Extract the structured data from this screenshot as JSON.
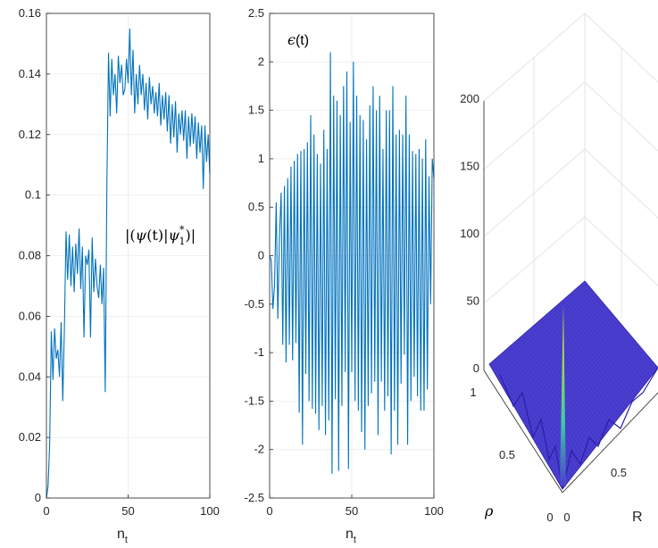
{
  "colors": {
    "series": "#0072BD",
    "axis": "#262626",
    "grid": "#ececec",
    "surface": "#4b3fd0",
    "surface_edge": "#2a1ea8",
    "spike_top": "#f6f000",
    "spike_mid": "#3ec9a0"
  },
  "chart_data": [
    {
      "type": "line",
      "annotation": "|(ψ(t)|ψ*1)|",
      "annotation_parts": {
        "a": "|(",
        "b": "ψ",
        "c": "(t)|",
        "d": "ψ",
        "e": "*",
        "f": "1",
        "g": ")|"
      },
      "xlabel": "n",
      "xlabel_sub": "t",
      "xlim": [
        0,
        100
      ],
      "ylim": [
        0,
        0.16
      ],
      "xticks": [
        0,
        50,
        100
      ],
      "xtick_labels": [
        "0",
        "50",
        "100"
      ],
      "yticks": [
        0,
        0.02,
        0.04,
        0.06,
        0.08,
        0.1,
        0.12,
        0.14,
        0.16
      ],
      "ytick_labels": [
        "0",
        "0.02",
        "0.04",
        "0.06",
        "0.08",
        "0.1",
        "0.12",
        "0.14",
        "0.16"
      ],
      "grid": true,
      "x": [
        0,
        1,
        2,
        3,
        4,
        5,
        6,
        7,
        8,
        9,
        10,
        11,
        12,
        13,
        14,
        15,
        16,
        17,
        18,
        19,
        20,
        21,
        22,
        23,
        24,
        25,
        26,
        27,
        28,
        29,
        30,
        31,
        32,
        33,
        34,
        35,
        36,
        37,
        38,
        39,
        40,
        41,
        42,
        43,
        44,
        45,
        46,
        47,
        48,
        49,
        50,
        51,
        52,
        53,
        54,
        55,
        56,
        57,
        58,
        59,
        60,
        61,
        62,
        63,
        64,
        65,
        66,
        67,
        68,
        69,
        70,
        71,
        72,
        73,
        74,
        75,
        76,
        77,
        78,
        79,
        80,
        81,
        82,
        83,
        84,
        85,
        86,
        87,
        88,
        89,
        90,
        91,
        92,
        93,
        94,
        95,
        96,
        97,
        98,
        99,
        100
      ],
      "y": [
        0,
        0.004,
        0.018,
        0.055,
        0.039,
        0.056,
        0.046,
        0.049,
        0.04,
        0.058,
        0.032,
        0.056,
        0.088,
        0.072,
        0.087,
        0.07,
        0.083,
        0.068,
        0.084,
        0.074,
        0.089,
        0.069,
        0.083,
        0.053,
        0.08,
        0.077,
        0.082,
        0.053,
        0.086,
        0.068,
        0.079,
        0.07,
        0.066,
        0.077,
        0.064,
        0.076,
        0.035,
        0.103,
        0.147,
        0.126,
        0.145,
        0.133,
        0.14,
        0.127,
        0.146,
        0.137,
        0.143,
        0.133,
        0.135,
        0.145,
        0.137,
        0.155,
        0.133,
        0.148,
        0.127,
        0.14,
        0.13,
        0.143,
        0.133,
        0.14,
        0.128,
        0.137,
        0.125,
        0.139,
        0.13,
        0.136,
        0.127,
        0.134,
        0.126,
        0.137,
        0.123,
        0.133,
        0.125,
        0.134,
        0.121,
        0.133,
        0.117,
        0.13,
        0.119,
        0.131,
        0.114,
        0.127,
        0.12,
        0.128,
        0.118,
        0.128,
        0.112,
        0.126,
        0.116,
        0.127,
        0.117,
        0.126,
        0.112,
        0.124,
        0.114,
        0.123,
        0.102,
        0.123,
        0.111,
        0.12,
        0.107
      ]
    },
    {
      "type": "line",
      "annotation": "ϵ(t)",
      "annotation_parts": {
        "a": "ϵ",
        "b": "(t)"
      },
      "xlabel": "n",
      "xlabel_sub": "t",
      "xlim": [
        0,
        100
      ],
      "ylim": [
        -2.5,
        2.5
      ],
      "xticks": [
        0,
        50,
        100
      ],
      "xtick_labels": [
        "0",
        "50",
        "100"
      ],
      "yticks": [
        -2.5,
        -2,
        -1.5,
        -1,
        -0.5,
        0,
        0.5,
        1,
        1.5,
        2,
        2.5
      ],
      "ytick_labels": [
        "-2.5",
        "-2",
        "-1.5",
        "-1",
        "-0.5",
        "0",
        "0.5",
        "1",
        "1.5",
        "2",
        "2.5"
      ],
      "grid": true,
      "x": [
        0,
        1,
        2,
        3,
        4,
        5,
        6,
        7,
        8,
        9,
        10,
        11,
        12,
        13,
        14,
        15,
        16,
        17,
        18,
        19,
        20,
        21,
        22,
        23,
        24,
        25,
        26,
        27,
        28,
        29,
        30,
        31,
        32,
        33,
        34,
        35,
        36,
        37,
        38,
        39,
        40,
        41,
        42,
        43,
        44,
        45,
        46,
        47,
        48,
        49,
        50,
        51,
        52,
        53,
        54,
        55,
        56,
        57,
        58,
        59,
        60,
        61,
        62,
        63,
        64,
        65,
        66,
        67,
        68,
        69,
        70,
        71,
        72,
        73,
        74,
        75,
        76,
        77,
        78,
        79,
        80,
        81,
        82,
        83,
        84,
        85,
        86,
        87,
        88,
        89,
        90,
        91,
        92,
        93,
        94,
        95,
        96,
        97,
        98,
        99,
        100
      ],
      "y": [
        0,
        -0.05,
        -0.55,
        -0.3,
        0.55,
        -0.65,
        0.2,
        0.65,
        -0.92,
        0.72,
        -1.1,
        0.8,
        -0.92,
        0.92,
        -1.08,
        0.98,
        -0.9,
        1.05,
        -1.62,
        1.08,
        -1.95,
        1.1,
        -1.22,
        1.17,
        -1.5,
        1.45,
        -1.58,
        1.25,
        -1.63,
        1.05,
        -1.8,
        0.95,
        -1.55,
        1.3,
        -1.85,
        1.1,
        -1.7,
        2.1,
        -2.25,
        1.65,
        -1.48,
        1.6,
        -2.22,
        1.45,
        -1.55,
        1.75,
        -1.2,
        1.9,
        -2.2,
        1.38,
        -1.2,
        2.0,
        -1.5,
        1.65,
        -1.6,
        1.45,
        -1.82,
        1.4,
        -2.0,
        1.2,
        -1.55,
        1.55,
        -1.42,
        1.75,
        -1.3,
        1.5,
        -1.85,
        1.65,
        -1.3,
        1.1,
        -1.6,
        1.5,
        -1.45,
        1.5,
        -2.05,
        1.75,
        -1.6,
        1.25,
        -1.95,
        1.3,
        -1.32,
        1.25,
        -1.02,
        1.65,
        -1.95,
        1.25,
        -1.5,
        1.08,
        -1.25,
        1.05,
        -1.45,
        1.1,
        -1.6,
        1.0,
        -1.6,
        1.2,
        -1.38,
        0.82,
        -0.5,
        1.0,
        0.8
      ]
    },
    {
      "type": "surface3d",
      "zticks": [
        0,
        50,
        100,
        150,
        200
      ],
      "ztick_labels": [
        "0",
        "50",
        "100",
        "150",
        "200"
      ],
      "zlim": [
        0,
        200
      ],
      "rho_ticks": [
        0,
        0.5,
        1
      ],
      "rho_tick_labels": [
        "0",
        "0.5",
        "1"
      ],
      "r_ticks": [
        0,
        0.5
      ],
      "r_tick_labels": [
        "0",
        "0.5"
      ],
      "rho_label": "ρ",
      "r_label": "R",
      "spike_height": 135
    }
  ]
}
